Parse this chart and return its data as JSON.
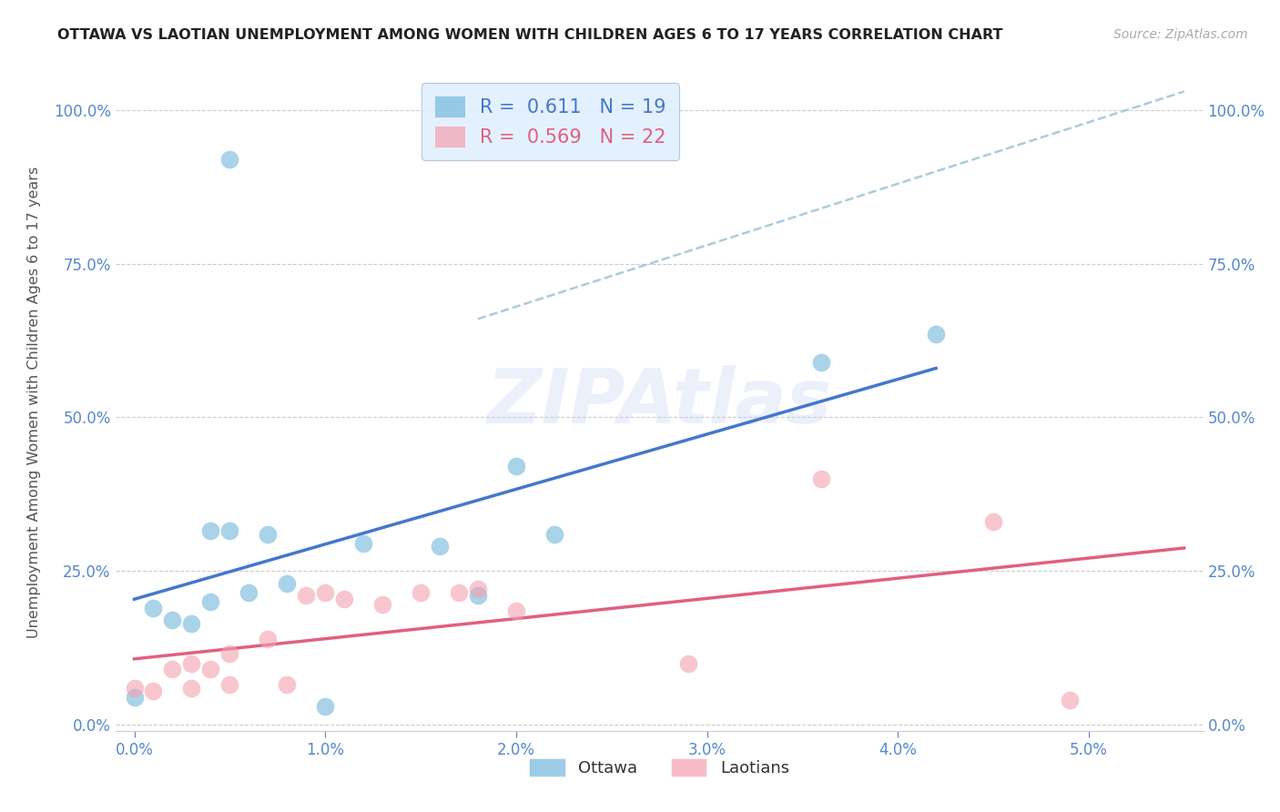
{
  "title": "OTTAWA VS LAOTIAN UNEMPLOYMENT AMONG WOMEN WITH CHILDREN AGES 6 TO 17 YEARS CORRELATION CHART",
  "source": "Source: ZipAtlas.com",
  "ylabel_left": "Unemployment Among Women with Children Ages 6 to 17 years",
  "watermark": "ZIPAtlas",
  "ottawa_R": 0.611,
  "ottawa_N": 19,
  "laotian_R": 0.569,
  "laotian_N": 22,
  "ottawa_color": "#7bbcde",
  "laotian_color": "#f4a0b0",
  "regression_blue": "#4477cc",
  "regression_pink": "#e06080",
  "dashed_color": "#aaccdd",
  "xlim": [
    -0.001,
    0.056
  ],
  "ylim": [
    -0.01,
    1.06
  ],
  "yticks": [
    0.0,
    0.25,
    0.5,
    0.75,
    1.0
  ],
  "ytick_labels": [
    "0.0%",
    "25.0%",
    "50.0%",
    "75.0%",
    "100.0%"
  ],
  "xticks": [
    0.0,
    0.01,
    0.02,
    0.03,
    0.04,
    0.05
  ],
  "xtick_labels": [
    "0.0%",
    "1.0%",
    "2.0%",
    "3.0%",
    "4.0%",
    "5.0%"
  ],
  "ottawa_x": [
    0.0,
    0.001,
    0.002,
    0.003,
    0.004,
    0.004,
    0.005,
    0.006,
    0.007,
    0.008,
    0.01,
    0.012,
    0.016,
    0.018,
    0.02,
    0.022,
    0.036,
    0.042,
    0.005
  ],
  "ottawa_y": [
    0.045,
    0.19,
    0.17,
    0.165,
    0.2,
    0.315,
    0.315,
    0.215,
    0.31,
    0.23,
    0.03,
    0.295,
    0.29,
    0.21,
    0.42,
    0.31,
    0.59,
    0.635,
    0.92
  ],
  "laotian_x": [
    0.0,
    0.001,
    0.002,
    0.003,
    0.003,
    0.004,
    0.005,
    0.005,
    0.007,
    0.008,
    0.009,
    0.01,
    0.011,
    0.013,
    0.015,
    0.017,
    0.018,
    0.02,
    0.029,
    0.036,
    0.045,
    0.049
  ],
  "laotian_y": [
    0.06,
    0.055,
    0.09,
    0.1,
    0.06,
    0.09,
    0.115,
    0.065,
    0.14,
    0.065,
    0.21,
    0.215,
    0.205,
    0.195,
    0.215,
    0.215,
    0.22,
    0.185,
    0.1,
    0.4,
    0.33,
    0.04
  ],
  "background_color": "#ffffff",
  "tick_color": "#5588cc",
  "grid_color": "#cccccc",
  "title_color": "#222222",
  "legend_bg": "#ddeeff"
}
